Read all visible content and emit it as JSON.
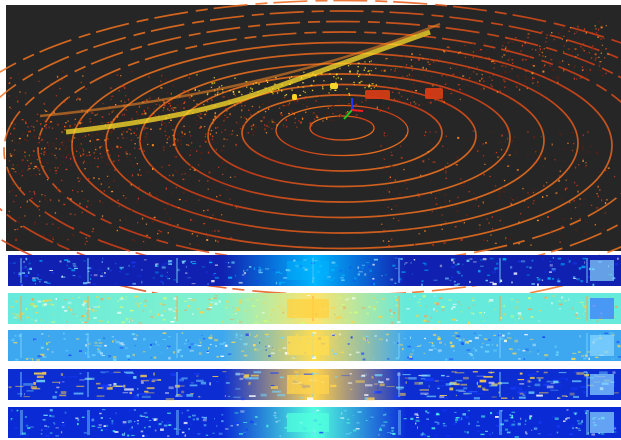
{
  "figure": {
    "point_cloud": {
      "background": "#262626",
      "palette": [
        "#ffdf2a",
        "#ff8a22",
        "#d33b16",
        "#6d1e0c"
      ],
      "sensor_axes": {
        "x_color": "#f01f1f",
        "y_color": "#20c820",
        "z_color": "#2036ff"
      }
    },
    "range_images": [
      {
        "name": "range-image-1",
        "dominant": "#1020b0",
        "accent": "#00b6ff"
      },
      {
        "name": "range-image-2",
        "dominant": "#65eadc",
        "accent": "#ffd240"
      },
      {
        "name": "range-image-3",
        "dominant": "#3da8f0",
        "accent": "#ffdc50"
      },
      {
        "name": "range-image-4",
        "dominant": "#0b2dd2",
        "accent": "#ffd34b"
      },
      {
        "name": "range-image-5",
        "dominant": "#0a2ad6",
        "accent": "#50ffde"
      }
    ]
  }
}
